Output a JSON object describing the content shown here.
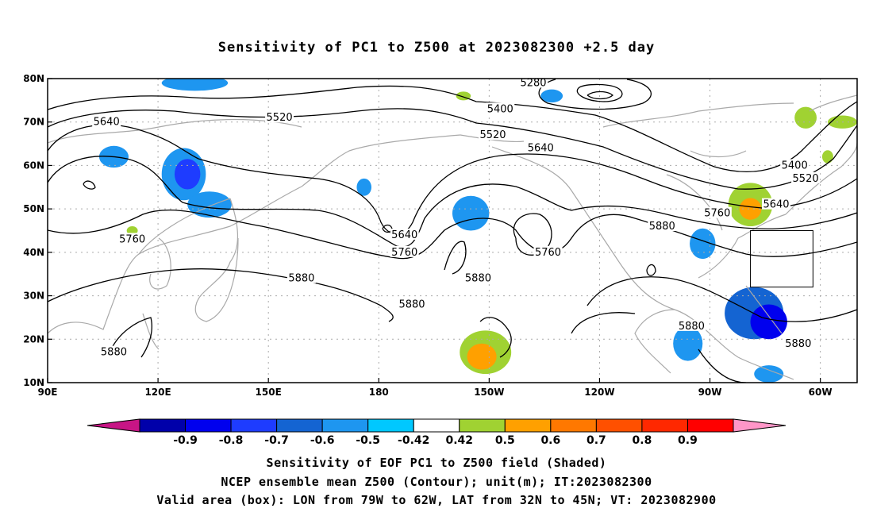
{
  "title": "Sensitivity of PC1 to Z500 at 2023082300 +2.5 day",
  "map": {
    "lon_range": [
      90,
      310
    ],
    "lat_range": [
      10,
      80
    ],
    "lat_ticks": [
      {
        "lat": 80,
        "label": "80N"
      },
      {
        "lat": 70,
        "label": "70N"
      },
      {
        "lat": 60,
        "label": "60N"
      },
      {
        "lat": 50,
        "label": "50N"
      },
      {
        "lat": 40,
        "label": "40N"
      },
      {
        "lat": 30,
        "label": "30N"
      },
      {
        "lat": 20,
        "label": "20N"
      },
      {
        "lat": 10,
        "label": "10N"
      }
    ],
    "lon_ticks": [
      {
        "lon": 90,
        "label": "90E"
      },
      {
        "lon": 120,
        "label": "120E"
      },
      {
        "lon": 150,
        "label": "150E"
      },
      {
        "lon": 180,
        "label": "180"
      },
      {
        "lon": 210,
        "label": "150W"
      },
      {
        "lon": 240,
        "label": "120W"
      },
      {
        "lon": 270,
        "label": "90W"
      },
      {
        "lon": 300,
        "label": "60W"
      }
    ],
    "grid_lons": [
      120,
      150,
      180,
      210,
      240,
      270,
      300
    ],
    "grid_lats": [
      20,
      30,
      40,
      50,
      60,
      70
    ],
    "valid_box": {
      "lon_min": 281,
      "lon_max": 298,
      "lat_min": 32,
      "lat_max": 45
    }
  },
  "contour_labels": [
    {
      "text": "5280",
      "lon": 222,
      "lat": 79
    },
    {
      "text": "5400",
      "lon": 213,
      "lat": 73
    },
    {
      "text": "5520",
      "lon": 153,
      "lat": 71
    },
    {
      "text": "5640",
      "lon": 106,
      "lat": 70
    },
    {
      "text": "5520",
      "lon": 211,
      "lat": 67
    },
    {
      "text": "5640",
      "lon": 224,
      "lat": 64
    },
    {
      "text": "5400",
      "lon": 293,
      "lat": 60
    },
    {
      "text": "5520",
      "lon": 296,
      "lat": 57
    },
    {
      "text": "5640",
      "lon": 288,
      "lat": 51
    },
    {
      "text": "5760",
      "lon": 272,
      "lat": 49
    },
    {
      "text": "5880",
      "lon": 257,
      "lat": 46
    },
    {
      "text": "5640",
      "lon": 187,
      "lat": 44
    },
    {
      "text": "5760",
      "lon": 187,
      "lat": 40
    },
    {
      "text": "5760",
      "lon": 226,
      "lat": 40
    },
    {
      "text": "5760",
      "lon": 113,
      "lat": 43
    },
    {
      "text": "5880",
      "lon": 159,
      "lat": 34
    },
    {
      "text": "5880",
      "lon": 207,
      "lat": 34
    },
    {
      "text": "5880",
      "lon": 189,
      "lat": 28
    },
    {
      "text": "5880",
      "lon": 265,
      "lat": 23
    },
    {
      "text": "5880",
      "lon": 108,
      "lat": 17
    },
    {
      "text": "5880",
      "lon": 294,
      "lat": 19
    }
  ],
  "sensitivity_patches": [
    {
      "lon": 127,
      "lat": 58,
      "rx": 6,
      "ry": 6,
      "value": -0.5
    },
    {
      "lon": 128,
      "lat": 58,
      "rx": 3.5,
      "ry": 3.5,
      "value": -0.7
    },
    {
      "lon": 134,
      "lat": 51,
      "rx": 6,
      "ry": 3,
      "value": -0.5
    },
    {
      "lon": 130,
      "lat": 79,
      "rx": 9,
      "ry": 1.8,
      "value": -0.5
    },
    {
      "lon": 108,
      "lat": 62,
      "rx": 4,
      "ry": 2.5,
      "value": -0.5
    },
    {
      "lon": 176,
      "lat": 55,
      "rx": 2,
      "ry": 2,
      "value": -0.5
    },
    {
      "lon": 205,
      "lat": 49,
      "rx": 5,
      "ry": 4,
      "value": -0.5
    },
    {
      "lon": 227,
      "lat": 76,
      "rx": 3,
      "ry": 1.5,
      "value": -0.5
    },
    {
      "lon": 268,
      "lat": 42,
      "rx": 3.5,
      "ry": 3.5,
      "value": -0.5
    },
    {
      "lon": 282,
      "lat": 26,
      "rx": 8,
      "ry": 6,
      "value": -0.6
    },
    {
      "lon": 286,
      "lat": 24,
      "rx": 5,
      "ry": 4,
      "value": -0.8
    },
    {
      "lon": 264,
      "lat": 19,
      "rx": 4,
      "ry": 4,
      "value": -0.5
    },
    {
      "lon": 286,
      "lat": 12,
      "rx": 4,
      "ry": 2,
      "value": -0.5
    },
    {
      "lon": 281,
      "lat": 51,
      "rx": 6,
      "ry": 5,
      "value": 0.5
    },
    {
      "lon": 281,
      "lat": 50,
      "rx": 3,
      "ry": 2.5,
      "value": 0.6
    },
    {
      "lon": 296,
      "lat": 71,
      "rx": 3,
      "ry": 2.5,
      "value": 0.5
    },
    {
      "lon": 306,
      "lat": 70,
      "rx": 4,
      "ry": 1.5,
      "value": 0.5
    },
    {
      "lon": 302,
      "lat": 62,
      "rx": 1.5,
      "ry": 1.5,
      "value": 0.5
    },
    {
      "lon": 209,
      "lat": 17,
      "rx": 7,
      "ry": 5,
      "value": 0.5
    },
    {
      "lon": 208,
      "lat": 16,
      "rx": 4,
      "ry": 3,
      "value": 0.6
    },
    {
      "lon": 203,
      "lat": 76,
      "rx": 2,
      "ry": 1,
      "value": 0.5
    },
    {
      "lon": 113,
      "lat": 45,
      "rx": 1.5,
      "ry": 1,
      "value": 0.5
    }
  ],
  "colorbar": {
    "colors": [
      "#c71585",
      "#0000aa",
      "#0000ee",
      "#1e3cff",
      "#1464d2",
      "#1e96f0",
      "#00c8ff",
      "#ffffff",
      "#a0d232",
      "#ffa000",
      "#ff7800",
      "#ff5000",
      "#ff2800",
      "#ff0000",
      "#ff96c8"
    ],
    "labels": [
      "-0.9",
      "-0.8",
      "-0.7",
      "-0.6",
      "-0.5",
      "-0.42",
      "0.42",
      "0.5",
      "0.6",
      "0.7",
      "0.8",
      "0.9"
    ]
  },
  "captions": {
    "line1": "Sensitivity of EOF PC1 to Z500 field (Shaded)",
    "line2": "NCEP ensemble mean Z500 (Contour); unit(m); IT:2023082300",
    "line3": "Valid area (box): LON from 79W to 62W, LAT from 32N to 45N; VT: 2023082900"
  }
}
